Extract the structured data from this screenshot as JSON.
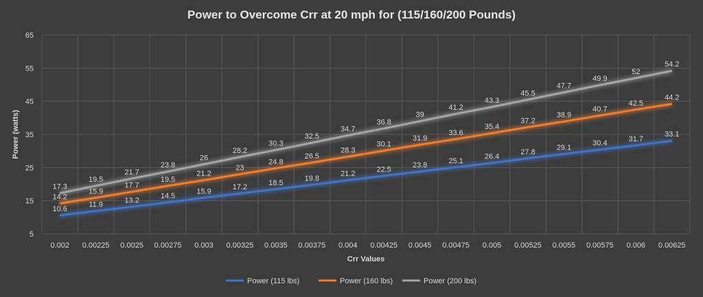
{
  "chart_data": {
    "type": "line",
    "title": "Power to Overcome Crr  at 20 mph for (115/160/200 Pounds)",
    "xlabel": "Crr Values",
    "ylabel": "Power (watts)",
    "ylim": [
      5,
      65
    ],
    "y_ticks": [
      "5",
      "15",
      "25",
      "35",
      "45",
      "55",
      "65"
    ],
    "categories": [
      "0.002",
      "0.00225",
      "0.0025",
      "0.00275",
      "0.003",
      "0.00325",
      "0.0035",
      "0.00375",
      "0.004",
      "0.00425",
      "0.0045",
      "0.00475",
      "0.005",
      "0.00525",
      "0.0055",
      "0.00575",
      "0.006",
      "0.00625"
    ],
    "grid": true,
    "legend_position": "bottom",
    "series": [
      {
        "name": "Power  (115 lbs)",
        "color": "#4472c4",
        "values": [
          10.6,
          11.9,
          13.2,
          14.5,
          15.9,
          17.2,
          18.5,
          19.8,
          21.2,
          22.5,
          23.8,
          25.1,
          26.4,
          27.8,
          29.1,
          30.4,
          31.7,
          33.1
        ],
        "labels": [
          "10.6",
          "11.9",
          "13.2",
          "14.5",
          "15.9",
          "17.2",
          "18.5",
          "19.8",
          "21.2",
          "22.5",
          "23.8",
          "25.1",
          "26.4",
          "27.8",
          "29.1",
          "30.4",
          "31.7",
          "33.1"
        ]
      },
      {
        "name": "Power (160 lbs)",
        "color": "#ed7d31",
        "values": [
          14.2,
          15.9,
          17.7,
          19.5,
          21.2,
          23,
          24.8,
          26.5,
          28.3,
          30.1,
          31.9,
          33.6,
          35.4,
          37.2,
          38.9,
          40.7,
          42.5,
          44.2
        ],
        "labels": [
          "14.2",
          "15.9",
          "17.7",
          "19.5",
          "21.2",
          "23",
          "24.8",
          "26.5",
          "28.3",
          "30.1",
          "31.9",
          "33.6",
          "35.4",
          "37.2",
          "38.9",
          "40.7",
          "42.5",
          "44.2"
        ]
      },
      {
        "name": "Power (200 lbs)",
        "color": "#a5a5a5",
        "values": [
          17.3,
          19.5,
          21.7,
          23.8,
          26,
          28.2,
          30.3,
          32.5,
          34.7,
          36.8,
          39,
          41.2,
          43.3,
          45.5,
          47.7,
          49.9,
          52,
          54.2
        ],
        "labels": [
          "17.3",
          "19.5",
          "21.7",
          "23.8",
          "26",
          "28.2",
          "30.3",
          "32.5",
          "34.7",
          "36.8",
          "39",
          "41.2",
          "43.3",
          "45.5",
          "47.7",
          "49.9",
          "52",
          "54.2"
        ]
      }
    ]
  }
}
